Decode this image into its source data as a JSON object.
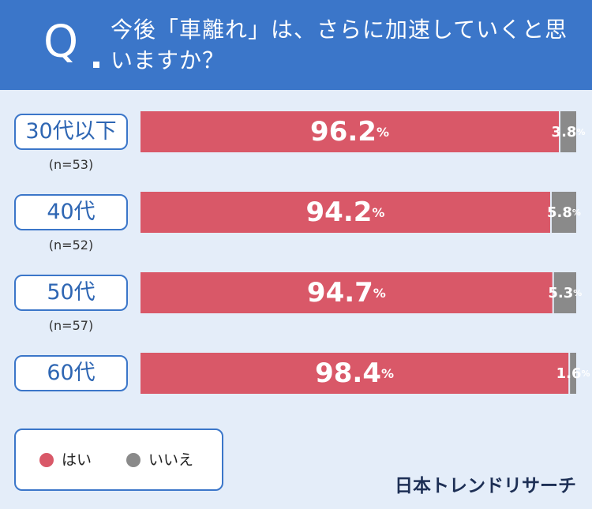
{
  "question": {
    "mark": "Q",
    "text": "今後「車離れ」は、さらに加速していくと思いますか？"
  },
  "chart_data": {
    "type": "bar",
    "stacked": true,
    "orientation": "horizontal",
    "categories": [
      "30代以下",
      "40代",
      "50代",
      "60代"
    ],
    "sample_sizes": [
      "(n=53)",
      "(n=52)",
      "(n=57)",
      ""
    ],
    "unit": "%",
    "xlim": [
      0,
      100
    ],
    "series": [
      {
        "name": "はい",
        "color": "#d95868",
        "values": [
          96.2,
          94.2,
          94.7,
          98.4
        ]
      },
      {
        "name": "いいえ",
        "color": "#8a8a8a",
        "values": [
          3.8,
          5.8,
          5.3,
          1.6
        ]
      }
    ],
    "grid": false,
    "legend_position": "bottom-left"
  },
  "brand": "日本トレンドリサーチ"
}
